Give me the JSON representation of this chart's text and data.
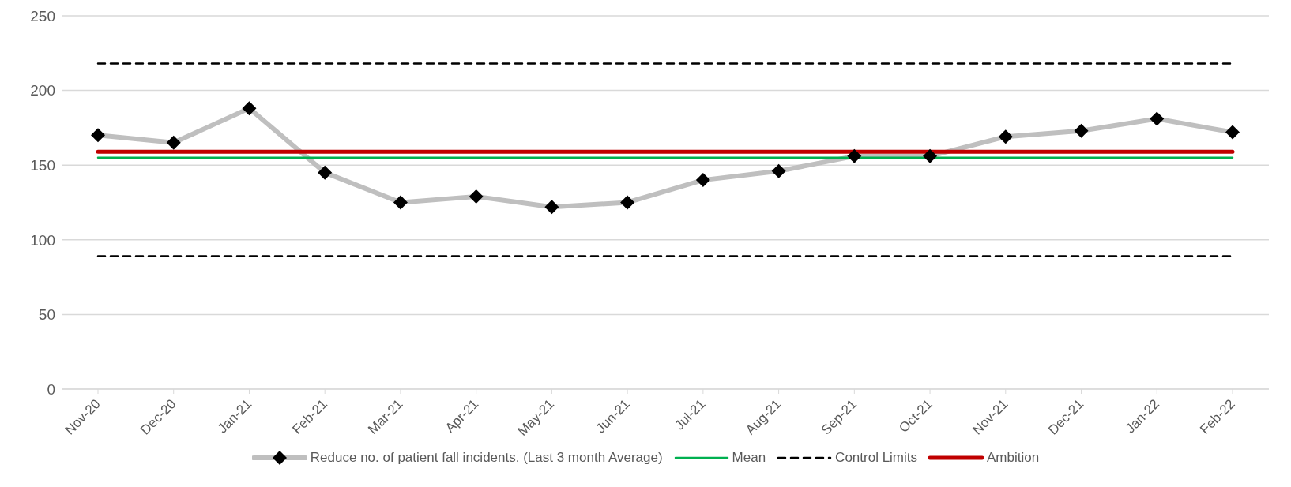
{
  "chart_data": {
    "type": "line",
    "categories": [
      "Nov-20",
      "Dec-20",
      "Jan-21",
      "Feb-21",
      "Mar-21",
      "Apr-21",
      "May-21",
      "Jun-21",
      "Jul-21",
      "Aug-21",
      "Sep-21",
      "Oct-21",
      "Nov-21",
      "Dec-21",
      "Jan-22",
      "Feb-22"
    ],
    "series": [
      {
        "name": "Reduce no. of patient fall incidents. (Last 3 month Average)",
        "color": "#bfbfbf",
        "marker": "diamond",
        "values": [
          170,
          165,
          188,
          145,
          125,
          129,
          122,
          125,
          140,
          146,
          156,
          156,
          169,
          173,
          181,
          172
        ]
      },
      {
        "name": "Mean",
        "color": "#00b050",
        "marker": "none",
        "values": [
          155,
          155,
          155,
          155,
          155,
          155,
          155,
          155,
          155,
          155,
          155,
          155,
          155,
          155,
          155,
          155
        ]
      },
      {
        "name": "Control Limits",
        "color": "#000000",
        "marker": "none",
        "line_style": "dashed",
        "values": [
          218,
          218,
          218,
          218,
          218,
          218,
          218,
          218,
          218,
          218,
          218,
          218,
          218,
          218,
          218,
          218
        ]
      },
      {
        "name": null,
        "color": "#000000",
        "marker": "none",
        "line_style": "dashed",
        "values": [
          89,
          89,
          89,
          89,
          89,
          89,
          89,
          89,
          89,
          89,
          89,
          89,
          89,
          89,
          89,
          89
        ]
      },
      {
        "name": "Ambition",
        "color": "#c00000",
        "marker": "none",
        "values": [
          159,
          159,
          159,
          159,
          159,
          159,
          159,
          159,
          159,
          159,
          159,
          159,
          159,
          159,
          159,
          159
        ]
      }
    ],
    "ylim": [
      0,
      250
    ],
    "yticks": [
      0,
      50,
      100,
      150,
      200,
      250
    ],
    "grid": "y",
    "legend": "bottom"
  }
}
